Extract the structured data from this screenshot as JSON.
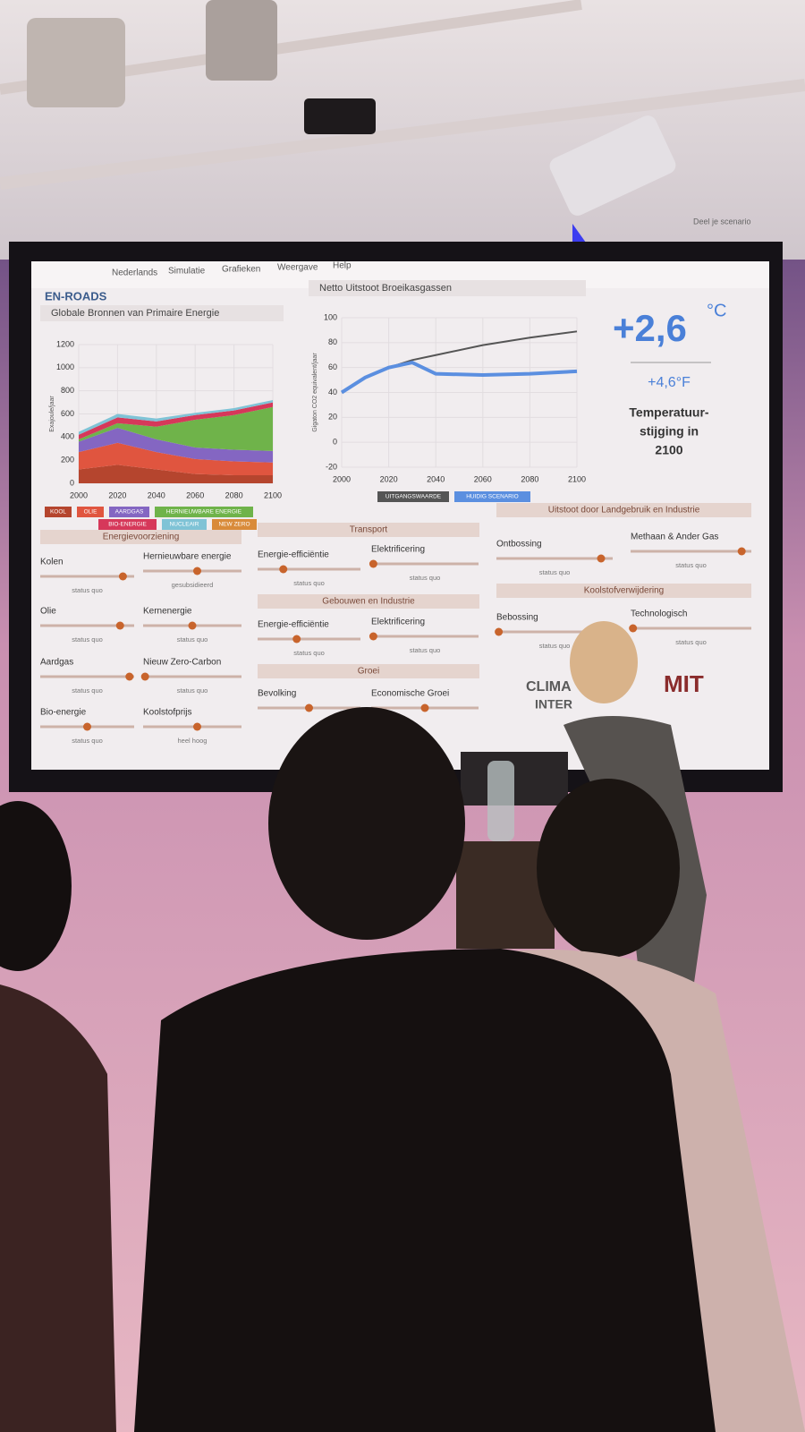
{
  "screen": {
    "menu": {
      "logo": "EN-ROADS",
      "items": [
        "Nederlands",
        "Simulatie",
        "Grafieken",
        "Weergave",
        "Help"
      ],
      "share": "Deel je scenario"
    },
    "energy_chart": {
      "type": "area",
      "title": "Globale Bronnen van Primaire Energie",
      "y_label": "Exajoule/jaar",
      "x": [
        2000,
        2020,
        2040,
        2060,
        2080,
        2100
      ],
      "xlim": [
        2000,
        2100
      ],
      "xticks": [
        2000,
        2020,
        2040,
        2060,
        2080,
        2100
      ],
      "ylim": [
        0,
        1200
      ],
      "yticks": [
        0,
        200,
        400,
        600,
        800,
        1000,
        1200
      ],
      "stacked": true,
      "series": [
        {
          "name": "KOOL",
          "color": "#b5452e",
          "values": [
            120,
            160,
            120,
            80,
            70,
            70
          ]
        },
        {
          "name": "OLIE",
          "color": "#e0553f",
          "values": [
            150,
            190,
            150,
            130,
            120,
            110
          ]
        },
        {
          "name": "AARDGAS",
          "color": "#8466c2",
          "values": [
            90,
            130,
            110,
            100,
            100,
            100
          ]
        },
        {
          "name": "HERNIEUWBARE ENERGIE",
          "color": "#6fb34a",
          "values": [
            20,
            40,
            110,
            240,
            300,
            380
          ]
        },
        {
          "name": "BIO-ENERGIE",
          "color": "#d6385a",
          "values": [
            40,
            50,
            45,
            40,
            40,
            40
          ]
        },
        {
          "name": "NUCLEAIR",
          "color": "#7fc3d6",
          "values": [
            25,
            30,
            25,
            20,
            20,
            20
          ]
        },
        {
          "name": "NEW ZERO",
          "color": "#d98b3a",
          "values": [
            0,
            0,
            0,
            0,
            0,
            0
          ]
        }
      ]
    },
    "emissions_chart": {
      "type": "line",
      "title": "Netto Uitstoot Broeikasgassen",
      "y_label": "Gigaton CO2 equivalent/jaar",
      "x": [
        2000,
        2010,
        2020,
        2030,
        2040,
        2060,
        2080,
        2100
      ],
      "xlim": [
        2000,
        2100
      ],
      "xticks": [
        2000,
        2020,
        2040,
        2060,
        2080,
        2100
      ],
      "ylim": [
        -20,
        100
      ],
      "yticks": [
        -20,
        0,
        20,
        40,
        60,
        80,
        100
      ],
      "series": [
        {
          "name": "UITGANGSWAARDE",
          "color": "#555555",
          "values": [
            40,
            52,
            60,
            66,
            70,
            78,
            84,
            89
          ]
        },
        {
          "name": "HUIDIG SCENARIO",
          "color": "#5b8fe0",
          "values": [
            40,
            52,
            60,
            64,
            55,
            54,
            55,
            57
          ]
        }
      ]
    },
    "temperature": {
      "celsius": "+2,6",
      "celsius_unit": "°C",
      "fahrenheit": "+4,6°F",
      "caption": [
        "Temperatuur-",
        "stijging in",
        "2100"
      ]
    },
    "slider_groups": [
      {
        "title": "Energievoorziening",
        "sliders": [
          {
            "label": "Kolen",
            "status": "status quo"
          },
          {
            "label": "Hernieuwbare energie",
            "status": "gesubsidieerd"
          },
          {
            "label": "Olie",
            "status": "status quo"
          },
          {
            "label": "Kernenergie",
            "status": "status quo"
          },
          {
            "label": "Aardgas",
            "status": "status quo"
          },
          {
            "label": "Nieuw Zero-Carbon",
            "status": "status quo"
          },
          {
            "label": "Bio-energie",
            "status": "status quo"
          },
          {
            "label": "Koolstofprijs",
            "status": "heel hoog"
          }
        ]
      },
      {
        "title": "Transport",
        "sliders": [
          {
            "label": "Energie-efficiëntie",
            "status": "status quo"
          },
          {
            "label": "Elektrificering",
            "status": "status quo"
          }
        ]
      },
      {
        "title": "Gebouwen en Industrie",
        "sliders": [
          {
            "label": "Energie-efficiëntie",
            "status": "status quo"
          },
          {
            "label": "Elektrificering",
            "status": "status quo"
          }
        ]
      },
      {
        "title": "Groei",
        "sliders": [
          {
            "label": "Bevolking"
          },
          {
            "label": "Economische Groei"
          }
        ]
      },
      {
        "title": "Uitstoot door Landgebruik en Industrie",
        "sliders": [
          {
            "label": "Ontbossing",
            "status": "status quo"
          },
          {
            "label": "Methaan & Ander Gas",
            "status": "status quo"
          }
        ]
      },
      {
        "title": "Koolstofverwijdering",
        "sliders": [
          {
            "label": "Bebossing",
            "status": "status quo"
          },
          {
            "label": "Technologisch",
            "status": "status quo"
          }
        ]
      }
    ],
    "logos": [
      "CLIMA",
      "INTER",
      "MIT"
    ]
  }
}
